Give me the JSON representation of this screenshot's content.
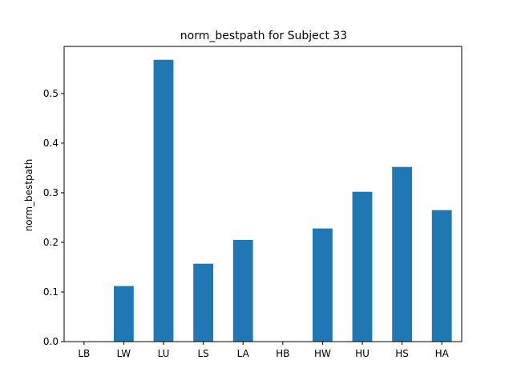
{
  "chart_data": {
    "type": "bar",
    "title": "norm_bestpath for Subject 33",
    "xlabel": "",
    "ylabel": "norm_bestpath",
    "categories": [
      "LB",
      "LW",
      "LU",
      "LS",
      "LA",
      "HB",
      "HW",
      "HU",
      "HS",
      "HA"
    ],
    "values": [
      0.0,
      0.112,
      0.568,
      0.157,
      0.205,
      0.0,
      0.228,
      0.302,
      0.352,
      0.265
    ],
    "ylim": [
      0,
      0.595
    ],
    "yticks": [
      0.0,
      0.1,
      0.2,
      0.3,
      0.4,
      0.5
    ],
    "ytick_labels": [
      "0.0",
      "0.1",
      "0.2",
      "0.3",
      "0.4",
      "0.5"
    ],
    "grid": false,
    "legend": "none",
    "bar_color": "#1f77b4"
  }
}
